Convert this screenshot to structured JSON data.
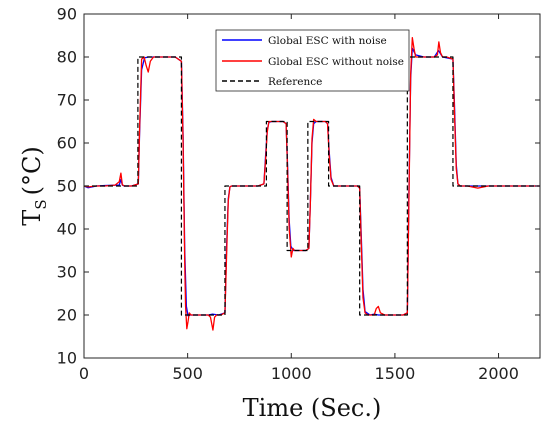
{
  "chart_data": {
    "type": "line",
    "xlabel": "Time (Sec.)",
    "ylabel_main": "T",
    "ylabel_sub": "S",
    "ylabel_unit": "(°C)",
    "xlim": [
      0,
      2200
    ],
    "ylim": [
      10,
      90
    ],
    "xticks": [
      0,
      500,
      1000,
      1500,
      2000
    ],
    "yticks": [
      10,
      20,
      30,
      40,
      50,
      60,
      70,
      80,
      90
    ],
    "grid": false,
    "legend_position": "top-center",
    "series": [
      {
        "name": "Global ESC with noise",
        "color": "#0000ff",
        "style": "solid",
        "x": [
          0,
          20,
          60,
          100,
          150,
          170,
          178,
          185,
          195,
          230,
          262,
          268,
          278,
          292,
          310,
          330,
          360,
          400,
          440,
          470,
          478,
          486,
          494,
          502,
          512,
          530,
          560,
          600,
          620,
          650,
          680,
          688,
          696,
          704,
          712,
          730,
          760,
          800,
          840,
          868,
          876,
          884,
          892,
          905,
          930,
          960,
          975,
          982,
          990,
          998,
          1010,
          1040,
          1070,
          1085,
          1092,
          1100,
          1108,
          1120,
          1140,
          1165,
          1175,
          1183,
          1192,
          1205,
          1240,
          1270,
          1300,
          1320,
          1330,
          1338,
          1346,
          1356,
          1380,
          1400,
          1420,
          1450,
          1500,
          1540,
          1560,
          1568,
          1576,
          1584,
          1600,
          1640,
          1690,
          1710,
          1730,
          1780,
          1788,
          1796,
          1804,
          1815,
          1850,
          1900,
          1950,
          2000,
          2100,
          2200
        ],
        "y": [
          50.0,
          49.6,
          50.0,
          50.1,
          50.2,
          50.2,
          51.5,
          50.2,
          50.0,
          50.0,
          50.5,
          62.0,
          77.0,
          79.8,
          80.0,
          80.0,
          80.0,
          80.0,
          80.0,
          79.0,
          62.0,
          35.0,
          22.0,
          19.8,
          20.0,
          20.0,
          20.0,
          20.0,
          20.2,
          20.0,
          20.5,
          36.0,
          47.0,
          49.8,
          50.0,
          50.0,
          50.0,
          50.0,
          50.0,
          50.5,
          57.0,
          63.0,
          64.8,
          65.0,
          65.0,
          65.0,
          64.5,
          55.0,
          42.0,
          36.0,
          35.0,
          35.0,
          35.0,
          35.5,
          46.0,
          60.0,
          64.5,
          65.0,
          65.0,
          65.0,
          64.5,
          58.0,
          52.0,
          50.0,
          50.0,
          50.0,
          50.0,
          50.0,
          49.5,
          38.0,
          26.0,
          20.8,
          20.0,
          20.2,
          20.0,
          20.0,
          20.0,
          20.0,
          20.5,
          50.0,
          75.0,
          82.0,
          80.5,
          80.0,
          80.0,
          81.5,
          80.0,
          79.5,
          68.0,
          55.0,
          50.5,
          50.0,
          50.0,
          50.0,
          50.0,
          50.0,
          50.0,
          50.0
        ]
      },
      {
        "name": "Global ESC without noise",
        "color": "#ff0000",
        "style": "solid",
        "x": [
          0,
          20,
          60,
          100,
          150,
          170,
          178,
          185,
          195,
          230,
          262,
          268,
          278,
          290,
          300,
          310,
          320,
          335,
          360,
          400,
          440,
          470,
          478,
          486,
          490,
          496,
          502,
          508,
          516,
          530,
          560,
          600,
          610,
          622,
          630,
          640,
          660,
          680,
          688,
          696,
          704,
          712,
          730,
          760,
          800,
          840,
          868,
          876,
          884,
          892,
          905,
          930,
          960,
          975,
          982,
          990,
          1000,
          1008,
          1016,
          1040,
          1070,
          1085,
          1092,
          1100,
          1108,
          1120,
          1140,
          1165,
          1175,
          1183,
          1192,
          1205,
          1240,
          1270,
          1300,
          1320,
          1330,
          1338,
          1346,
          1356,
          1370,
          1400,
          1410,
          1420,
          1430,
          1450,
          1500,
          1540,
          1560,
          1568,
          1576,
          1584,
          1592,
          1600,
          1610,
          1640,
          1690,
          1705,
          1712,
          1720,
          1730,
          1750,
          1780,
          1788,
          1796,
          1804,
          1815,
          1850,
          1900,
          1950,
          2000,
          2100,
          2200
        ],
        "y": [
          50.0,
          49.8,
          50.0,
          50.0,
          50.2,
          51.0,
          53.0,
          50.3,
          50.0,
          50.0,
          50.5,
          63.0,
          79.5,
          80.0,
          78.0,
          76.5,
          79.0,
          80.0,
          80.0,
          80.0,
          80.0,
          79.0,
          60.0,
          32.0,
          22.0,
          16.8,
          18.5,
          20.5,
          20.0,
          20.0,
          20.0,
          20.0,
          19.5,
          16.5,
          19.5,
          20.0,
          20.0,
          20.5,
          34.0,
          46.5,
          49.8,
          50.0,
          50.0,
          50.0,
          50.0,
          50.0,
          50.5,
          56.0,
          62.5,
          65.0,
          65.0,
          65.0,
          65.0,
          64.5,
          54.0,
          40.0,
          33.5,
          35.5,
          35.0,
          35.0,
          35.0,
          35.5,
          46.0,
          61.0,
          65.5,
          65.0,
          65.0,
          65.0,
          64.5,
          57.0,
          51.5,
          50.0,
          50.0,
          50.0,
          50.0,
          50.0,
          49.5,
          36.0,
          24.0,
          20.5,
          20.0,
          20.0,
          21.5,
          22.0,
          20.5,
          20.0,
          20.0,
          20.0,
          20.5,
          48.0,
          76.0,
          84.5,
          82.0,
          80.0,
          80.0,
          80.0,
          80.0,
          80.5,
          83.5,
          81.0,
          80.0,
          80.0,
          79.5,
          66.0,
          54.0,
          50.5,
          50.0,
          50.0,
          49.5,
          50.0,
          50.0,
          50.0,
          50.0
        ]
      },
      {
        "name": "Reference",
        "color": "#000000",
        "style": "dashed",
        "x": [
          0,
          260,
          260,
          470,
          470,
          680,
          680,
          880,
          880,
          980,
          980,
          1080,
          1080,
          1180,
          1180,
          1330,
          1330,
          1560,
          1560,
          1780,
          1780,
          2200
        ],
        "y": [
          50,
          50,
          80,
          80,
          20,
          20,
          50,
          50,
          65,
          65,
          35,
          35,
          65,
          65,
          50,
          50,
          20,
          20,
          80,
          80,
          50,
          50
        ]
      }
    ]
  }
}
